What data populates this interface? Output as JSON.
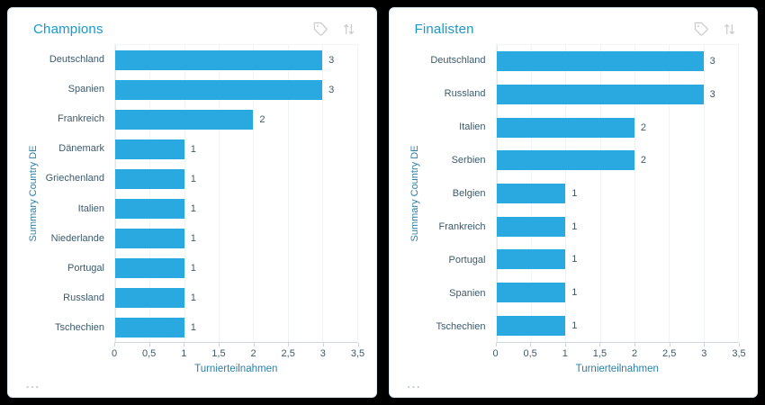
{
  "colors": {
    "page_bg": "#000000",
    "card_bg": "#ffffff",
    "card_border": "#d9e9f2",
    "title": "#1898cb",
    "axis_title": "#2e7fa6",
    "tick_label": "#3c5a6c",
    "bar": "#29a9e0",
    "icon": "#cccccc"
  },
  "panels": [
    {
      "title": "Champions",
      "icons": [
        "tag-icon",
        "sort-vertical-icon"
      ],
      "footer_menu": "..."
    },
    {
      "title": "Finalisten",
      "icons": [
        "tag-icon",
        "sort-vertical-icon"
      ],
      "footer_menu": "..."
    }
  ],
  "chart_data": [
    {
      "type": "bar",
      "orientation": "horizontal",
      "title": "Champions",
      "categories": [
        "Deutschland",
        "Spanien",
        "Frankreich",
        "Dänemark",
        "Griechenland",
        "Italien",
        "Niederlande",
        "Portugal",
        "Russland",
        "Tschechien"
      ],
      "values": [
        3,
        3,
        2,
        1,
        1,
        1,
        1,
        1,
        1,
        1
      ],
      "value_labels": [
        "3",
        "3",
        "2",
        "1",
        "1",
        "1",
        "1",
        "1",
        "1",
        "1"
      ],
      "xlabel": "Turnierteilnahmen",
      "ylabel": "Summary Country DE",
      "xlim": [
        0,
        3.5
      ],
      "xticks": [
        0,
        0.5,
        1,
        1.5,
        2,
        2.5,
        3,
        3.5
      ],
      "xtick_labels": [
        "0",
        "0,5",
        "1",
        "1,5",
        "2",
        "2,5",
        "3",
        "3,5"
      ],
      "grid": true,
      "legend": false,
      "bar_color": "#29a9e0"
    },
    {
      "type": "bar",
      "orientation": "horizontal",
      "title": "Finalisten",
      "categories": [
        "Deutschland",
        "Russland",
        "Italien",
        "Serbien",
        "Belgien",
        "Frankreich",
        "Portugal",
        "Spanien",
        "Tschechien"
      ],
      "values": [
        3,
        3,
        2,
        2,
        1,
        1,
        1,
        1,
        1
      ],
      "value_labels": [
        "3",
        "3",
        "2",
        "2",
        "1",
        "1",
        "1",
        "1",
        "1"
      ],
      "xlabel": "Turnierteilnahmen",
      "ylabel": "Summary Country DE",
      "xlim": [
        0,
        3.5
      ],
      "xticks": [
        0,
        0.5,
        1,
        1.5,
        2,
        2.5,
        3,
        3.5
      ],
      "xtick_labels": [
        "0",
        "0,5",
        "1",
        "1,5",
        "2",
        "2,5",
        "3",
        "3,5"
      ],
      "grid": true,
      "legend": false,
      "bar_color": "#29a9e0"
    }
  ]
}
